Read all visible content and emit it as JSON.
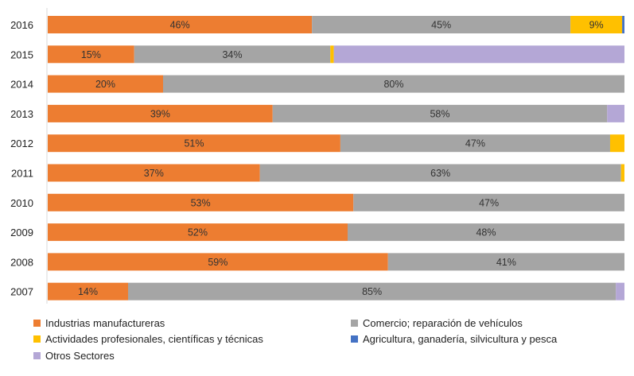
{
  "chart_data": {
    "type": "bar",
    "orientation": "horizontal",
    "stacked": "percent",
    "categories": [
      "2016",
      "2015",
      "2014",
      "2013",
      "2012",
      "2011",
      "2010",
      "2009",
      "2008",
      "2007"
    ],
    "series": [
      {
        "name": "Industrias manufactureras",
        "color": "#ED7D31",
        "values": [
          46,
          15,
          20,
          39,
          51,
          37,
          53,
          52,
          59,
          14
        ],
        "labels": [
          "46%",
          "15%",
          "20%",
          "39%",
          "51%",
          "37%",
          "53%",
          "52%",
          "59%",
          "14%"
        ]
      },
      {
        "name": "Comercio; reparación de vehículos",
        "color": "#A5A5A5",
        "values": [
          45,
          34,
          80,
          58,
          47,
          63,
          47,
          48,
          41,
          85
        ],
        "labels": [
          "45%",
          "34%",
          "80%",
          "58%",
          "47%",
          "63%",
          "47%",
          "48%",
          "41%",
          "85%"
        ]
      },
      {
        "name": "Actividades profesionales, científicas y técnicas",
        "color": "#FFC000",
        "values": [
          9,
          0.6,
          0,
          0,
          2.5,
          0.6,
          0,
          0,
          0,
          0
        ],
        "labels": [
          "9%",
          "",
          "",
          "",
          "",
          "",
          "",
          "",
          "",
          ""
        ]
      },
      {
        "name": "Agricultura, ganadería,  silvicultura y pesca",
        "color": "#4472C4",
        "values": [
          0.4,
          0,
          0,
          0,
          0,
          0,
          0,
          0,
          0,
          0
        ],
        "labels": [
          "",
          "",
          "",
          "",
          "",
          "",
          "",
          "",
          "",
          ""
        ]
      },
      {
        "name": "Otros Sectores",
        "color": "#B4A7D6",
        "values": [
          0,
          50.4,
          0,
          3,
          0,
          0,
          0,
          0,
          0,
          1.5
        ],
        "labels": [
          "",
          "",
          "",
          "",
          "",
          "",
          "",
          "",
          "",
          ""
        ]
      }
    ],
    "xlim": [
      0,
      100
    ],
    "grid": false,
    "legend": "bottom"
  }
}
